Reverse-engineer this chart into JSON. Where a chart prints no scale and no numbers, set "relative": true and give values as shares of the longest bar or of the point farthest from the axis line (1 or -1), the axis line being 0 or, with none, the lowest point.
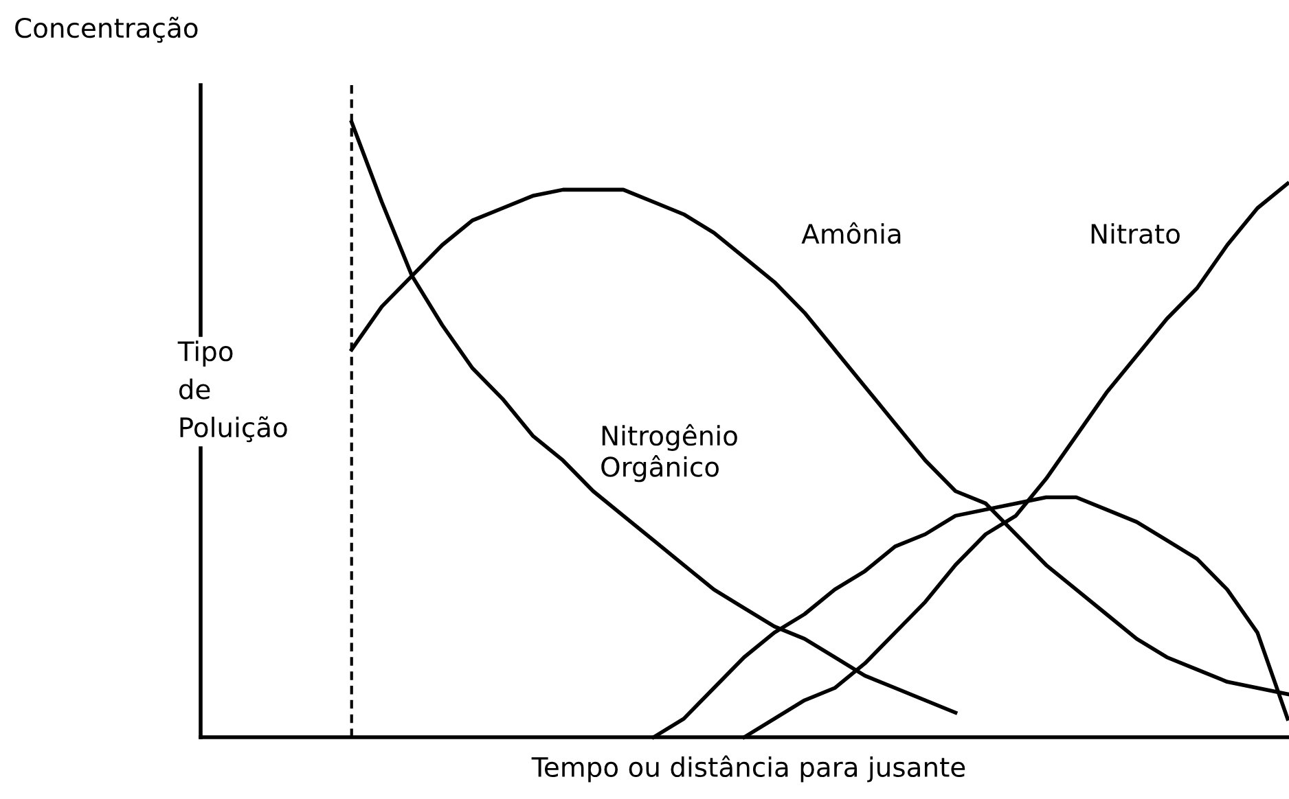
{
  "chart_data": {
    "type": "line",
    "relative": true,
    "ylabel": "Concentração",
    "xlabel": "Tempo ou distância para jusante",
    "categories": [
      null,
      null,
      null,
      null,
      null,
      null,
      null,
      null,
      null,
      null,
      null,
      null,
      null,
      null,
      null,
      null,
      null,
      null,
      null,
      null,
      null,
      null,
      null,
      null,
      null,
      null,
      null,
      null,
      null,
      null,
      null,
      null,
      null,
      null,
      null,
      null,
      null
    ],
    "series": [
      {
        "name": "Nitrogênio\nOrgânico",
        "color": "#000000",
        "values": [
          null,
          null,
          null,
          null,
          null,
          1,
          0.87,
          0.75,
          0.67,
          0.6,
          0.55,
          0.49,
          0.45,
          0.4,
          0.36,
          0.32,
          0.28,
          0.24,
          0.21,
          0.18,
          0.16,
          0.13,
          0.1,
          0.08,
          0.06,
          0.04,
          null,
          null,
          null,
          null,
          null,
          null,
          null,
          null,
          null,
          null,
          null
        ]
      },
      {
        "name": "Amônia",
        "color": "#000000",
        "values": [
          null,
          null,
          null,
          null,
          null,
          0.63,
          0.7,
          0.75,
          0.8,
          0.84,
          0.86,
          0.88,
          0.89,
          0.89,
          0.89,
          0.87,
          0.85,
          0.82,
          0.78,
          0.74,
          0.69,
          0.63,
          0.57,
          0.51,
          0.45,
          0.4,
          0.38,
          0.33,
          0.28,
          0.24,
          0.2,
          0.16,
          0.13,
          0.11,
          0.09,
          0.08,
          0.07
        ]
      },
      {
        "color": "#000000",
        "values": [
          null,
          null,
          null,
          null,
          null,
          null,
          null,
          null,
          null,
          null,
          null,
          null,
          null,
          null,
          null,
          0,
          0.03,
          0.08,
          0.13,
          0.17,
          0.2,
          0.24,
          0.27,
          0.31,
          0.33,
          0.36,
          0.37,
          0.38,
          0.39,
          0.39,
          0.37,
          0.35,
          0.32,
          0.29,
          0.24,
          0.17,
          0.03
        ]
      },
      {
        "name": "Nitrato",
        "color": "#000000",
        "values": [
          null,
          null,
          null,
          null,
          null,
          null,
          null,
          null,
          null,
          null,
          null,
          null,
          null,
          null,
          null,
          null,
          null,
          null,
          0,
          0.03,
          0.06,
          0.08,
          0.12,
          0.17,
          0.22,
          0.28,
          0.33,
          0.36,
          0.42,
          0.49,
          0.56,
          0.62,
          0.68,
          0.73,
          0.8,
          0.86,
          0.9
        ]
      }
    ],
    "annotations": [
      "Tipo\nde\nPoluição"
    ],
    "grid": false,
    "legend": false,
    "marker": "none",
    "line_style": "solid"
  }
}
